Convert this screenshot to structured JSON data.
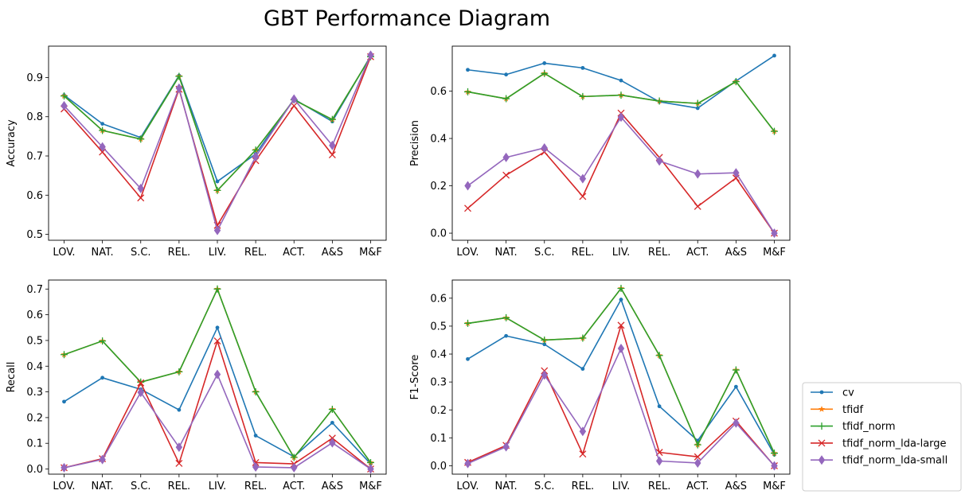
{
  "figure": {
    "title": "GBT Performance Diagram"
  },
  "colors": {
    "cv": "#1f77b4",
    "tfidf": "#ff7f0e",
    "tfidf_norm": "#2ca02c",
    "tfidf_norm_lda-large": "#d62728",
    "tfidf_norm_lda-small": "#9467bd"
  },
  "legend": {
    "placement": "lower-right outside",
    "entries": [
      {
        "name": "cv",
        "marker": "dot"
      },
      {
        "name": "tfidf",
        "marker": "star"
      },
      {
        "name": "tfidf_norm",
        "marker": "plus"
      },
      {
        "name": "tfidf_norm_lda-large",
        "marker": "x"
      },
      {
        "name": "tfidf_norm_lda-small",
        "marker": "diamond"
      }
    ]
  },
  "chart_data": [
    {
      "type": "line",
      "ylabel": "Accuracy",
      "categories": [
        "LOV.",
        "NAT.",
        "S.C.",
        "REL.",
        "LIV.",
        "REL.",
        "ACT.",
        "A&S",
        "M&F"
      ],
      "ylim": [
        0.485,
        0.98
      ],
      "yticks": [
        0.5,
        0.6,
        0.7,
        0.8,
        0.9
      ],
      "ytick_labels": [
        "0.5",
        "0.6",
        "0.7",
        "0.8",
        "0.9"
      ],
      "series": [
        {
          "name": "cv",
          "values": [
            0.855,
            0.782,
            0.747,
            0.905,
            0.635,
            0.705,
            0.845,
            0.788,
            0.955
          ]
        },
        {
          "name": "tfidf",
          "values": [
            0.853,
            0.765,
            0.743,
            0.903,
            0.612,
            0.715,
            0.843,
            0.793,
            0.953
          ]
        },
        {
          "name": "tfidf_norm",
          "values": [
            0.853,
            0.765,
            0.743,
            0.903,
            0.612,
            0.715,
            0.843,
            0.793,
            0.953
          ]
        },
        {
          "name": "tfidf_norm_lda-large",
          "values": [
            0.82,
            0.71,
            0.593,
            0.87,
            0.523,
            0.688,
            0.828,
            0.703,
            0.953
          ]
        },
        {
          "name": "tfidf_norm_lda-small",
          "values": [
            0.828,
            0.723,
            0.617,
            0.873,
            0.51,
            0.698,
            0.845,
            0.727,
            0.957
          ]
        }
      ]
    },
    {
      "type": "line",
      "ylabel": "Precision",
      "categories": [
        "LOV.",
        "NAT.",
        "S.C.",
        "REL.",
        "LIV.",
        "REL.",
        "ACT.",
        "A&S",
        "M&F"
      ],
      "ylim": [
        -0.03,
        0.79
      ],
      "yticks": [
        0.0,
        0.2,
        0.4,
        0.6
      ],
      "ytick_labels": [
        "0.0",
        "0.2",
        "0.4",
        "0.6"
      ],
      "series": [
        {
          "name": "cv",
          "values": [
            0.69,
            0.67,
            0.718,
            0.698,
            0.645,
            0.555,
            0.528,
            0.643,
            0.75
          ]
        },
        {
          "name": "tfidf",
          "values": [
            0.597,
            0.568,
            0.675,
            0.577,
            0.583,
            0.558,
            0.548,
            0.64,
            0.43
          ]
        },
        {
          "name": "tfidf_norm",
          "values": [
            0.597,
            0.568,
            0.675,
            0.577,
            0.583,
            0.558,
            0.548,
            0.64,
            0.43
          ]
        },
        {
          "name": "tfidf_norm_lda-large",
          "values": [
            0.105,
            0.245,
            0.343,
            0.155,
            0.507,
            0.32,
            0.113,
            0.233,
            0.0
          ]
        },
        {
          "name": "tfidf_norm_lda-small",
          "values": [
            0.2,
            0.32,
            0.36,
            0.23,
            0.49,
            0.305,
            0.25,
            0.255,
            0.0
          ]
        }
      ]
    },
    {
      "type": "line",
      "ylabel": "Recall",
      "categories": [
        "LOV.",
        "NAT.",
        "S.C.",
        "REL.",
        "LIV.",
        "REL.",
        "ACT.",
        "A&S",
        "M&F"
      ],
      "ylim": [
        -0.02,
        0.735
      ],
      "yticks": [
        0.0,
        0.1,
        0.2,
        0.3,
        0.4,
        0.5,
        0.6,
        0.7
      ],
      "ytick_labels": [
        "0.0",
        "0.1",
        "0.2",
        "0.3",
        "0.4",
        "0.5",
        "0.6",
        "0.7"
      ],
      "series": [
        {
          "name": "cv",
          "values": [
            0.262,
            0.355,
            0.31,
            0.23,
            0.55,
            0.13,
            0.048,
            0.18,
            0.02
          ]
        },
        {
          "name": "tfidf",
          "values": [
            0.445,
            0.498,
            0.338,
            0.378,
            0.7,
            0.3,
            0.045,
            0.232,
            0.025
          ]
        },
        {
          "name": "tfidf_norm",
          "values": [
            0.445,
            0.498,
            0.338,
            0.378,
            0.7,
            0.3,
            0.045,
            0.232,
            0.025
          ]
        },
        {
          "name": "tfidf_norm_lda-large",
          "values": [
            0.005,
            0.04,
            0.335,
            0.022,
            0.498,
            0.025,
            0.02,
            0.12,
            0.0
          ]
        },
        {
          "name": "tfidf_norm_lda-small",
          "values": [
            0.005,
            0.037,
            0.298,
            0.085,
            0.368,
            0.008,
            0.005,
            0.102,
            0.0
          ]
        }
      ]
    },
    {
      "type": "line",
      "ylabel": "F1-Score",
      "categories": [
        "LOV.",
        "NAT.",
        "S.C.",
        "REL.",
        "LIV.",
        "REL.",
        "ACT.",
        "A&S",
        "M&F"
      ],
      "ylim": [
        -0.03,
        0.665
      ],
      "yticks": [
        0.0,
        0.1,
        0.2,
        0.3,
        0.4,
        0.5,
        0.6
      ],
      "ytick_labels": [
        "0.0",
        "0.1",
        "0.2",
        "0.3",
        "0.4",
        "0.5",
        "0.6"
      ],
      "series": [
        {
          "name": "cv",
          "values": [
            0.382,
            0.465,
            0.435,
            0.347,
            0.595,
            0.213,
            0.09,
            0.283,
            0.04
          ]
        },
        {
          "name": "tfidf",
          "values": [
            0.51,
            0.53,
            0.45,
            0.457,
            0.635,
            0.395,
            0.075,
            0.343,
            0.045
          ]
        },
        {
          "name": "tfidf_norm",
          "values": [
            0.51,
            0.53,
            0.45,
            0.457,
            0.635,
            0.395,
            0.075,
            0.343,
            0.045
          ]
        },
        {
          "name": "tfidf_norm_lda-large",
          "values": [
            0.012,
            0.073,
            0.34,
            0.042,
            0.503,
            0.048,
            0.032,
            0.16,
            0.0
          ]
        },
        {
          "name": "tfidf_norm_lda-small",
          "values": [
            0.008,
            0.068,
            0.325,
            0.123,
            0.42,
            0.017,
            0.01,
            0.153,
            0.0
          ]
        }
      ]
    }
  ]
}
